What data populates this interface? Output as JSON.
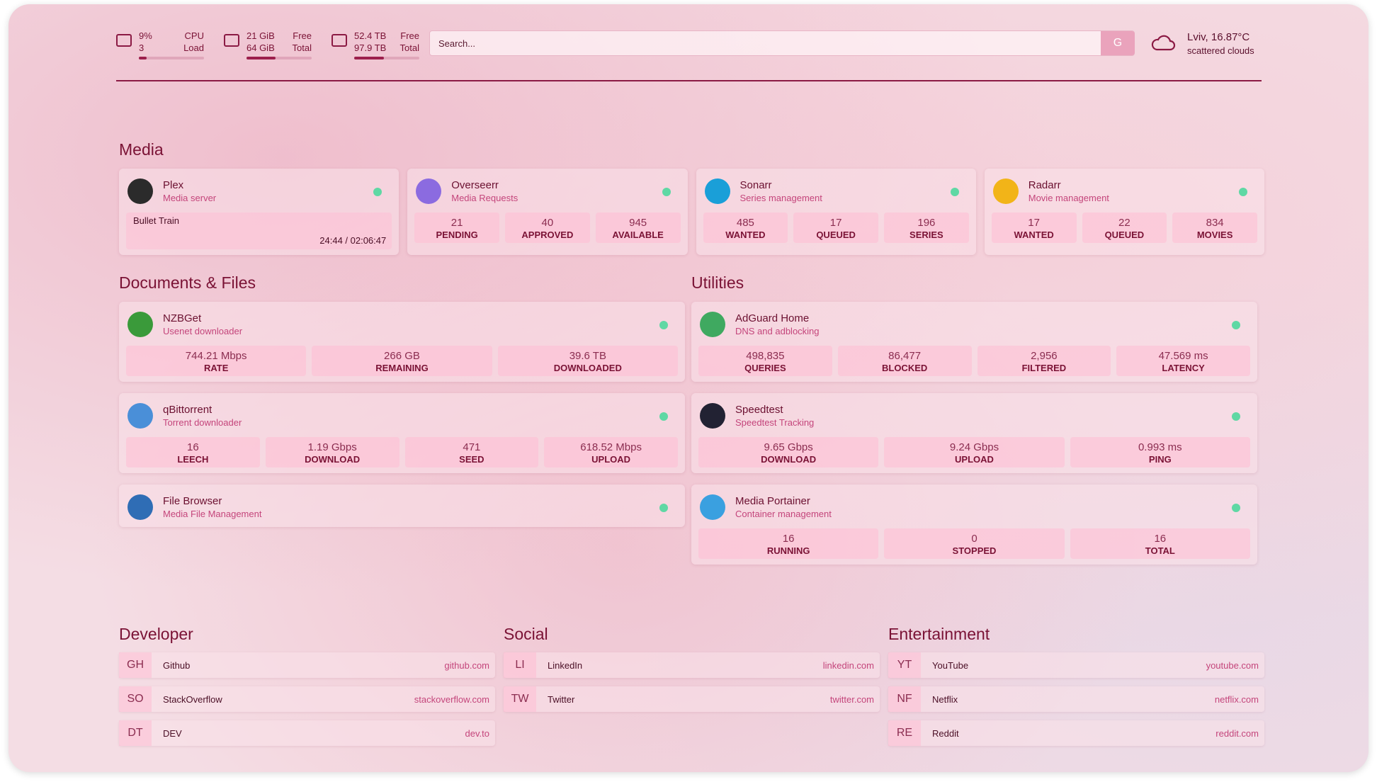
{
  "header": {
    "widgets": [
      {
        "value": "9%",
        "sub": "3",
        "label": "CPU",
        "sublabel": "Load"
      },
      {
        "value": "21 GiB",
        "sub": "64 GiB",
        "label": "Free",
        "sublabel": "Total"
      },
      {
        "value": "52.4 TB",
        "sub": "97.9 TB",
        "label": "Free",
        "sublabel": "Total"
      }
    ],
    "search_placeholder": "Search...",
    "search_button": "G",
    "weather": {
      "location": "Lviv, 16.87°C",
      "condition": "scattered clouds"
    }
  },
  "groups": [
    {
      "title": "Media",
      "services": [
        {
          "name": "Plex",
          "description": "Media server",
          "now_playing": {
            "title": "Bullet Train",
            "time": "24:44 / 02:06:47"
          }
        },
        {
          "name": "Overseerr",
          "description": "Media Requests",
          "stats": [
            {
              "value": "21",
              "label": "PENDING"
            },
            {
              "value": "40",
              "label": "APPROVED"
            },
            {
              "value": "945",
              "label": "AVAILABLE"
            }
          ]
        },
        {
          "name": "Sonarr",
          "description": "Series management",
          "stats": [
            {
              "value": "485",
              "label": "WANTED"
            },
            {
              "value": "17",
              "label": "QUEUED"
            },
            {
              "value": "196",
              "label": "SERIES"
            }
          ]
        },
        {
          "name": "Radarr",
          "description": "Movie management",
          "stats": [
            {
              "value": "17",
              "label": "WANTED"
            },
            {
              "value": "22",
              "label": "QUEUED"
            },
            {
              "value": "834",
              "label": "MOVIES"
            }
          ]
        }
      ]
    },
    {
      "title": "Documents & Files",
      "services": [
        {
          "name": "NZBGet",
          "description": "Usenet downloader",
          "stats": [
            {
              "value": "744.21 Mbps",
              "label": "RATE"
            },
            {
              "value": "266 GB",
              "label": "REMAINING"
            },
            {
              "value": "39.6 TB",
              "label": "DOWNLOADED"
            }
          ]
        },
        {
          "name": "qBittorrent",
          "description": "Torrent downloader",
          "stats": [
            {
              "value": "16",
              "label": "LEECH"
            },
            {
              "value": "1.19 Gbps",
              "label": "DOWNLOAD"
            },
            {
              "value": "471",
              "label": "SEED"
            },
            {
              "value": "618.52 Mbps",
              "label": "UPLOAD"
            }
          ]
        },
        {
          "name": "File Browser",
          "description": "Media File Management"
        }
      ]
    },
    {
      "title": "Utilities",
      "services": [
        {
          "name": "AdGuard Home",
          "description": "DNS and adblocking",
          "stats": [
            {
              "value": "498,835",
              "label": "QUERIES"
            },
            {
              "value": "86,477",
              "label": "BLOCKED"
            },
            {
              "value": "2,956",
              "label": "FILTERED"
            },
            {
              "value": "47.569 ms",
              "label": "LATENCY"
            }
          ]
        },
        {
          "name": "Speedtest",
          "description": "Speedtest Tracking",
          "stats": [
            {
              "value": "9.65 Gbps",
              "label": "DOWNLOAD"
            },
            {
              "value": "9.24 Gbps",
              "label": "UPLOAD"
            },
            {
              "value": "0.993 ms",
              "label": "PING"
            }
          ]
        },
        {
          "name": "Media Portainer",
          "description": "Container management",
          "stats": [
            {
              "value": "16",
              "label": "RUNNING"
            },
            {
              "value": "0",
              "label": "STOPPED"
            },
            {
              "value": "16",
              "label": "TOTAL"
            }
          ]
        }
      ]
    }
  ],
  "bookmarks": [
    {
      "title": "Developer",
      "items": [
        {
          "abbr": "GH",
          "name": "Github",
          "href": "github.com"
        },
        {
          "abbr": "SO",
          "name": "StackOverflow",
          "href": "stackoverflow.com"
        },
        {
          "abbr": "DT",
          "name": "DEV",
          "href": "dev.to"
        }
      ]
    },
    {
      "title": "Social",
      "items": [
        {
          "abbr": "LI",
          "name": "LinkedIn",
          "href": "linkedin.com"
        },
        {
          "abbr": "TW",
          "name": "Twitter",
          "href": "twitter.com"
        }
      ]
    },
    {
      "title": "Entertainment",
      "items": [
        {
          "abbr": "YT",
          "name": "YouTube",
          "href": "youtube.com"
        },
        {
          "abbr": "NF",
          "name": "Netflix",
          "href": "netflix.com"
        },
        {
          "abbr": "RE",
          "name": "Reddit",
          "href": "reddit.com"
        }
      ]
    }
  ]
}
